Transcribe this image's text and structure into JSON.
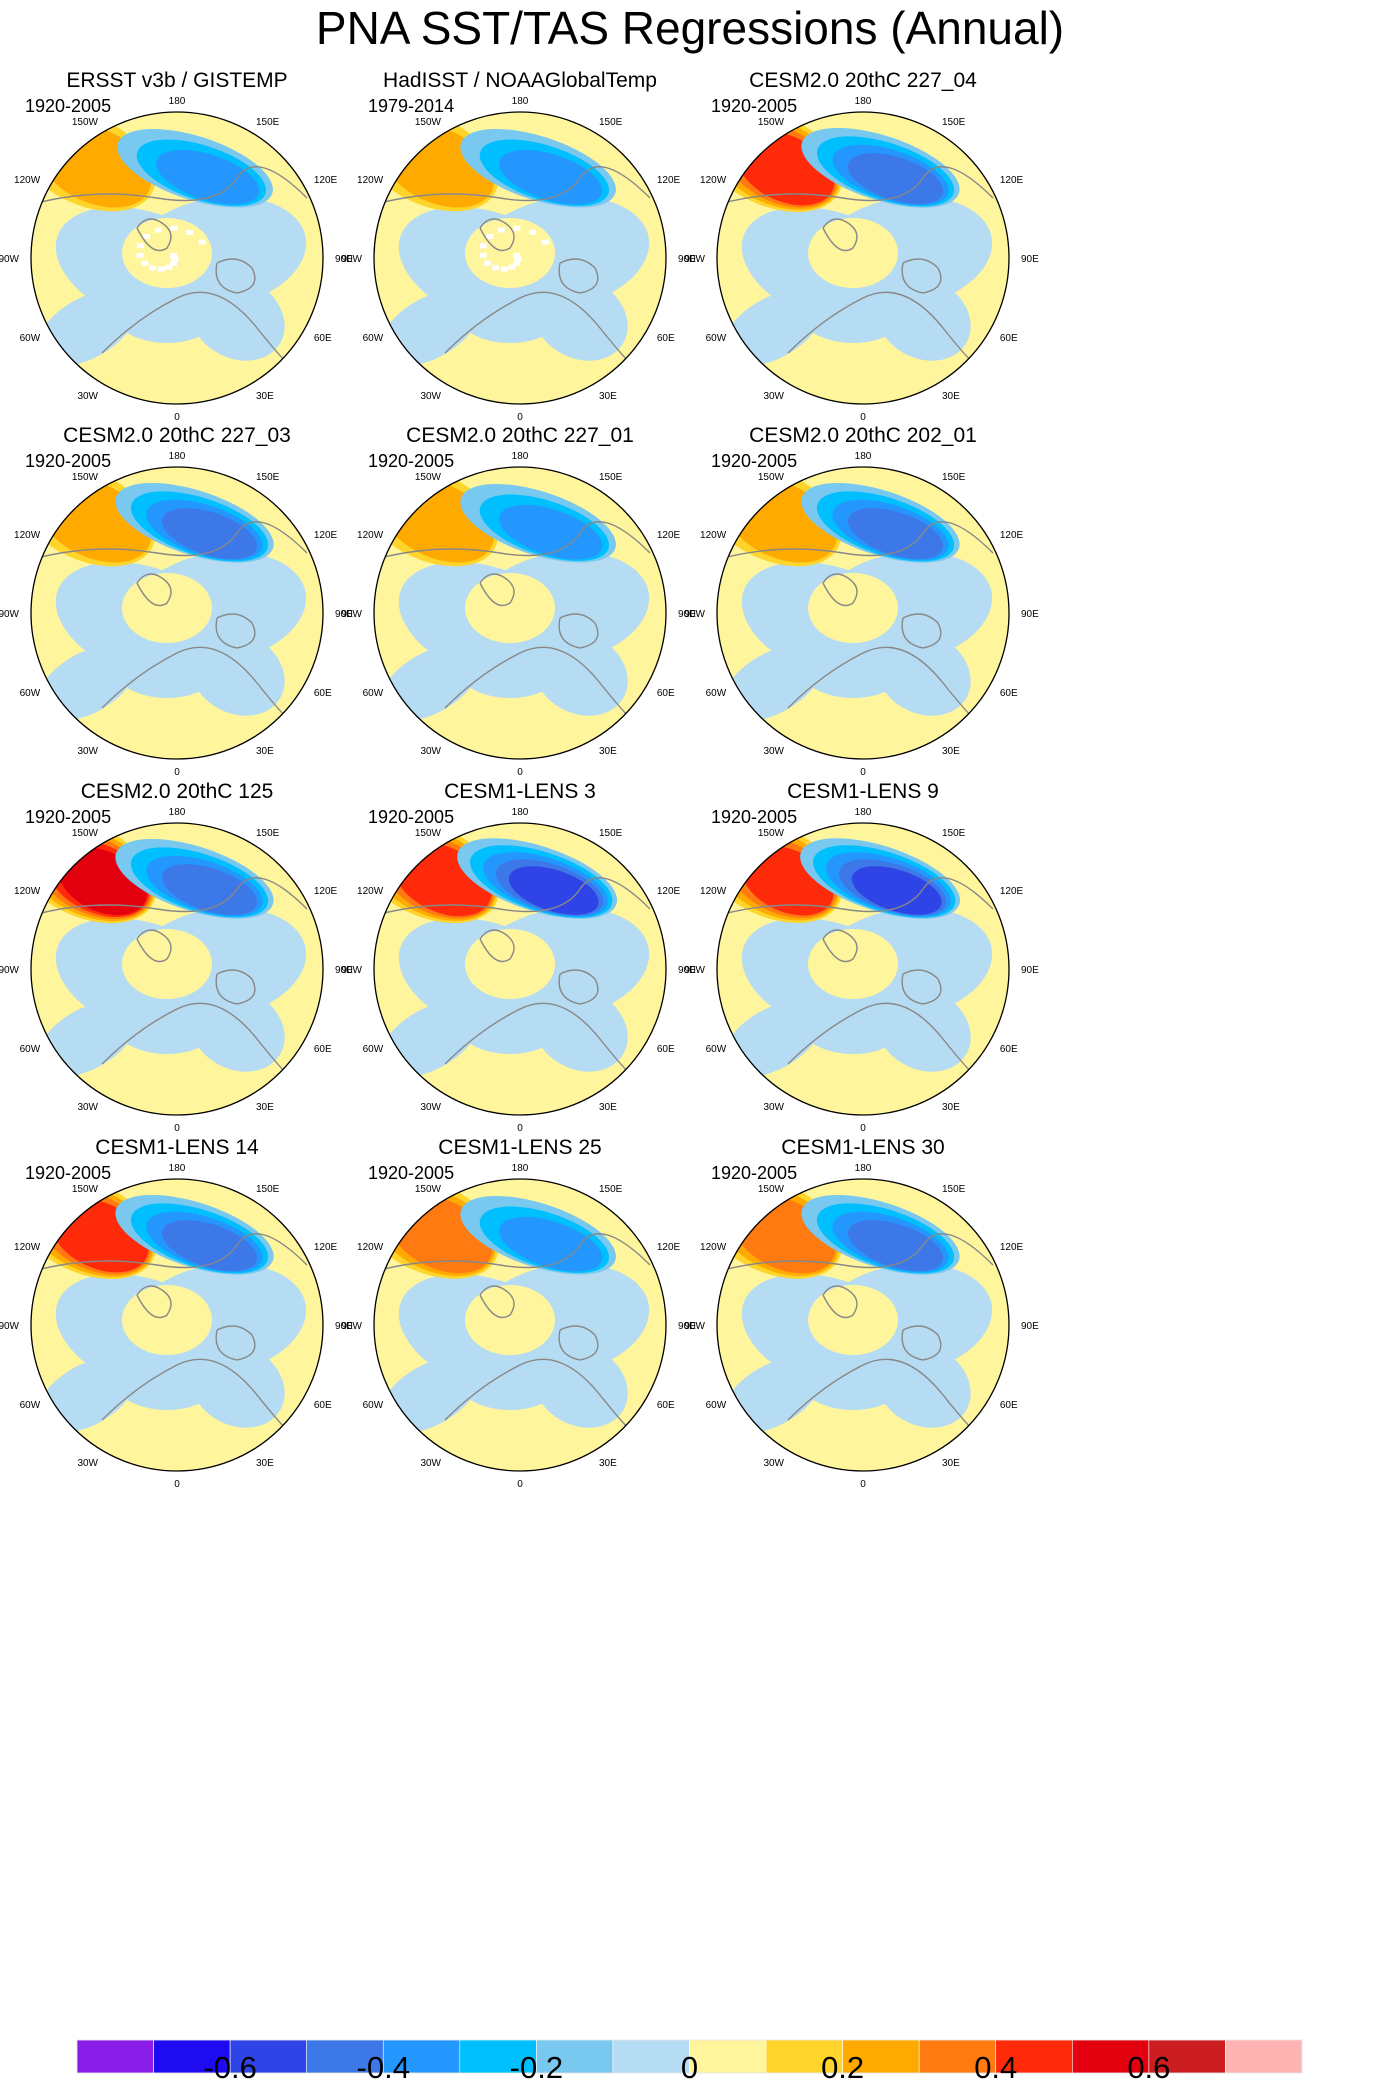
{
  "figure": {
    "title": "PNA SST/TAS Regressions (Annual)"
  },
  "chart_data": {
    "type": "polar-contour-map-panels",
    "projection": "north polar stereographic",
    "panels": [
      {
        "title": "ERSST v3b / GISTEMP",
        "period": "1920-2005",
        "warm_core_value": 0.3,
        "cool_core_value": -0.4,
        "has_missing_data": true
      },
      {
        "title": "HadISST / NOAAGlobalTemp",
        "period": "1979-2014",
        "warm_core_value": 0.3,
        "cool_core_value": -0.4,
        "has_missing_data": true
      },
      {
        "title": "CESM2.0 20thC 227_04",
        "period": "1920-2005",
        "warm_core_value": 0.5,
        "cool_core_value": -0.5,
        "has_missing_data": false
      },
      {
        "title": "CESM2.0 20thC 227_03",
        "period": "1920-2005",
        "warm_core_value": 0.3,
        "cool_core_value": -0.5,
        "has_missing_data": false
      },
      {
        "title": "CESM2.0 20thC 227_01",
        "period": "1920-2005",
        "warm_core_value": 0.3,
        "cool_core_value": -0.4,
        "has_missing_data": false
      },
      {
        "title": "CESM2.0 20thC 202_01",
        "period": "1920-2005",
        "warm_core_value": 0.3,
        "cool_core_value": -0.5,
        "has_missing_data": false
      },
      {
        "title": "CESM2.0 20thC 125",
        "period": "1920-2005",
        "warm_core_value": 0.55,
        "cool_core_value": -0.5,
        "has_missing_data": false
      },
      {
        "title": "CESM1-LENS 3",
        "period": "1920-2005",
        "warm_core_value": 0.5,
        "cool_core_value": -0.6,
        "has_missing_data": false
      },
      {
        "title": "CESM1-LENS 9",
        "period": "1920-2005",
        "warm_core_value": 0.45,
        "cool_core_value": -0.6,
        "has_missing_data": false
      },
      {
        "title": "CESM1-LENS 14",
        "period": "1920-2005",
        "warm_core_value": 0.5,
        "cool_core_value": -0.5,
        "has_missing_data": false
      },
      {
        "title": "CESM1-LENS 25",
        "period": "1920-2005",
        "warm_core_value": 0.4,
        "cool_core_value": -0.4,
        "has_missing_data": false
      },
      {
        "title": "CESM1-LENS 30",
        "period": "1920-2005",
        "warm_core_value": 0.4,
        "cool_core_value": -0.5,
        "has_missing_data": false
      }
    ],
    "longitude_labels": [
      {
        "label": "180",
        "lon": 180
      },
      {
        "label": "150E",
        "lon": 150
      },
      {
        "label": "120E",
        "lon": 120
      },
      {
        "label": "90E",
        "lon": 90
      },
      {
        "label": "60E",
        "lon": 60
      },
      {
        "label": "30E",
        "lon": 30
      },
      {
        "label": "0",
        "lon": 0
      },
      {
        "label": "30W",
        "lon": -30
      },
      {
        "label": "60W",
        "lon": -60
      },
      {
        "label": "90W",
        "lon": -90
      },
      {
        "label": "120W",
        "lon": -120
      },
      {
        "label": "150W",
        "lon": -150
      }
    ],
    "colorbar": {
      "boundaries": [
        -0.7,
        -0.6,
        -0.5,
        -0.4,
        -0.3,
        -0.2,
        -0.1,
        0,
        0.1,
        0.2,
        0.3,
        0.4,
        0.5,
        0.6,
        0.7
      ],
      "colors": [
        "#8a1ee8",
        "#1e0bf2",
        "#2f44e6",
        "#3d78e8",
        "#2497ff",
        "#00bfff",
        "#79c8ef",
        "#b5dcf2",
        "#fff59c",
        "#ffd42b",
        "#ffaa00",
        "#ff7a10",
        "#ff2a0a",
        "#e3000f",
        "#cc1d20",
        "#ffb4b4"
      ],
      "tick_labels": [
        {
          "label": "-0.6",
          "value": -0.6
        },
        {
          "label": "-0.4",
          "value": -0.4
        },
        {
          "label": "-0.2",
          "value": -0.2
        },
        {
          "label": "0",
          "value": 0
        },
        {
          "label": "0.2",
          "value": 0.2
        },
        {
          "label": "0.4",
          "value": 0.4
        },
        {
          "label": "0.6",
          "value": 0.6
        }
      ]
    }
  }
}
